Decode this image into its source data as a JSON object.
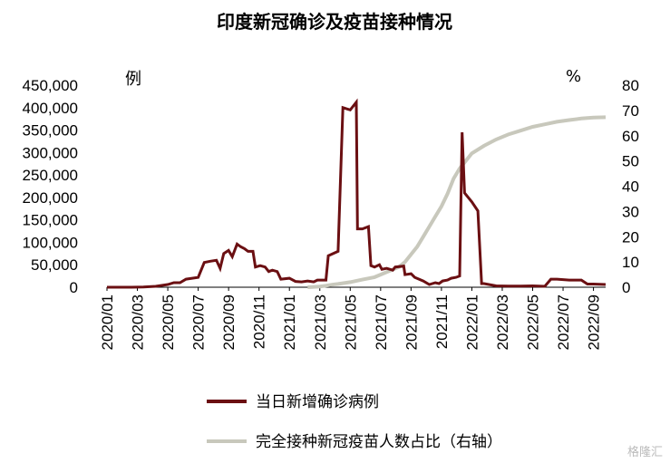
{
  "chart_data": {
    "type": "line",
    "title": "印度新冠确诊及疫苗接种情况",
    "left_unit": "例",
    "right_unit": "%",
    "y_left": {
      "ticks": [
        "0",
        "50,000",
        "100,000",
        "150,000",
        "200,000",
        "250,000",
        "300,000",
        "350,000",
        "400,000",
        "450,000"
      ],
      "range": [
        0,
        450000
      ]
    },
    "y_right": {
      "ticks": [
        "0",
        "10",
        "20",
        "30",
        "40",
        "50",
        "60",
        "70",
        "80"
      ],
      "range": [
        0,
        80
      ]
    },
    "x_ticks": [
      "2020/01",
      "2020/03",
      "2020/05",
      "2020/07",
      "2020/09",
      "2020/11",
      "2021/01",
      "2021/03",
      "2021/05",
      "2021/07",
      "2021/09",
      "2021/11",
      "2022/01",
      "2022/03",
      "2022/05",
      "2022/07",
      "2022/09"
    ],
    "legend_position": "bottom",
    "series": [
      {
        "name": "当日新增确诊病例",
        "axis": "left",
        "color": "#6b0f12",
        "values": [
          [
            0,
            0
          ],
          [
            2,
            0
          ],
          [
            3,
            500
          ],
          [
            4,
            2000
          ],
          [
            5,
            6000
          ],
          [
            5.5,
            10000
          ],
          [
            6,
            10000
          ],
          [
            6.5,
            18000
          ],
          [
            7,
            20000
          ],
          [
            7.5,
            22000
          ],
          [
            8,
            55000
          ],
          [
            8.5,
            58000
          ],
          [
            9,
            60000
          ],
          [
            9.3,
            42000
          ],
          [
            9.6,
            75000
          ],
          [
            10,
            82000
          ],
          [
            10.3,
            68000
          ],
          [
            10.7,
            96000
          ],
          [
            11,
            90000
          ],
          [
            11.3,
            86000
          ],
          [
            11.6,
            80000
          ],
          [
            12,
            80000
          ],
          [
            12.2,
            45000
          ],
          [
            12.6,
            48000
          ],
          [
            13,
            45000
          ],
          [
            13.3,
            35000
          ],
          [
            13.6,
            38000
          ],
          [
            14,
            35000
          ],
          [
            14.3,
            18000
          ],
          [
            15,
            20000
          ],
          [
            15.5,
            13000
          ],
          [
            16,
            12000
          ],
          [
            16.5,
            14000
          ],
          [
            17,
            12000
          ],
          [
            17.3,
            16000
          ],
          [
            18,
            16000
          ],
          [
            18.2,
            70000
          ],
          [
            19,
            80000
          ],
          [
            19.4,
            400000
          ],
          [
            20,
            395000
          ],
          [
            20.5,
            412000
          ],
          [
            20.6,
            130000
          ],
          [
            21,
            130000
          ],
          [
            21.5,
            135000
          ],
          [
            21.7,
            48000
          ],
          [
            22,
            45000
          ],
          [
            22.4,
            50000
          ],
          [
            22.6,
            40000
          ],
          [
            23,
            42000
          ],
          [
            23.5,
            38000
          ],
          [
            23.7,
            45000
          ],
          [
            24.4,
            47000
          ],
          [
            24.5,
            28000
          ],
          [
            25,
            30000
          ],
          [
            25.3,
            22000
          ],
          [
            26,
            14000
          ],
          [
            26.5,
            6000
          ],
          [
            27,
            10000
          ],
          [
            27.3,
            8000
          ],
          [
            27.6,
            14000
          ],
          [
            28,
            16000
          ],
          [
            28.3,
            20000
          ],
          [
            28.7,
            22000
          ],
          [
            29,
            25000
          ],
          [
            29.2,
            345000
          ],
          [
            29.4,
            210000
          ],
          [
            30,
            190000
          ],
          [
            30.5,
            170000
          ],
          [
            30.8,
            8000
          ],
          [
            31,
            8000
          ],
          [
            32,
            3000
          ],
          [
            33,
            2500
          ],
          [
            34,
            2500
          ],
          [
            35,
            3000
          ],
          [
            36,
            2000
          ],
          [
            36.5,
            18000
          ],
          [
            37,
            18000
          ],
          [
            38,
            16000
          ],
          [
            39,
            16000
          ],
          [
            39.5,
            7000
          ],
          [
            40,
            7000
          ],
          [
            41,
            6000
          ]
        ]
      },
      {
        "name": "完全接种新冠疫苗人数占比（右轴）",
        "axis": "right",
        "color": "#c8c8bc",
        "values": [
          [
            16.5,
            0
          ],
          [
            17.5,
            0.3
          ],
          [
            18,
            0.6
          ],
          [
            18.5,
            1
          ],
          [
            19,
            1.3
          ],
          [
            20,
            2
          ],
          [
            21,
            3
          ],
          [
            22,
            4
          ],
          [
            23,
            6
          ],
          [
            24,
            8
          ],
          [
            24.5,
            10
          ],
          [
            25,
            13
          ],
          [
            25.5,
            16
          ],
          [
            26,
            20
          ],
          [
            26.5,
            24
          ],
          [
            27,
            28
          ],
          [
            27.5,
            32
          ],
          [
            28,
            37
          ],
          [
            28.5,
            43
          ],
          [
            29,
            47
          ],
          [
            29.5,
            50
          ],
          [
            30,
            53
          ],
          [
            31,
            56
          ],
          [
            32,
            58.5
          ],
          [
            33,
            60.5
          ],
          [
            34,
            62
          ],
          [
            35,
            63.5
          ],
          [
            36,
            64.5
          ],
          [
            37,
            65.5
          ],
          [
            38,
            66.2
          ],
          [
            39,
            66.8
          ],
          [
            40,
            67.2
          ],
          [
            41,
            67.3
          ]
        ]
      }
    ]
  }
}
